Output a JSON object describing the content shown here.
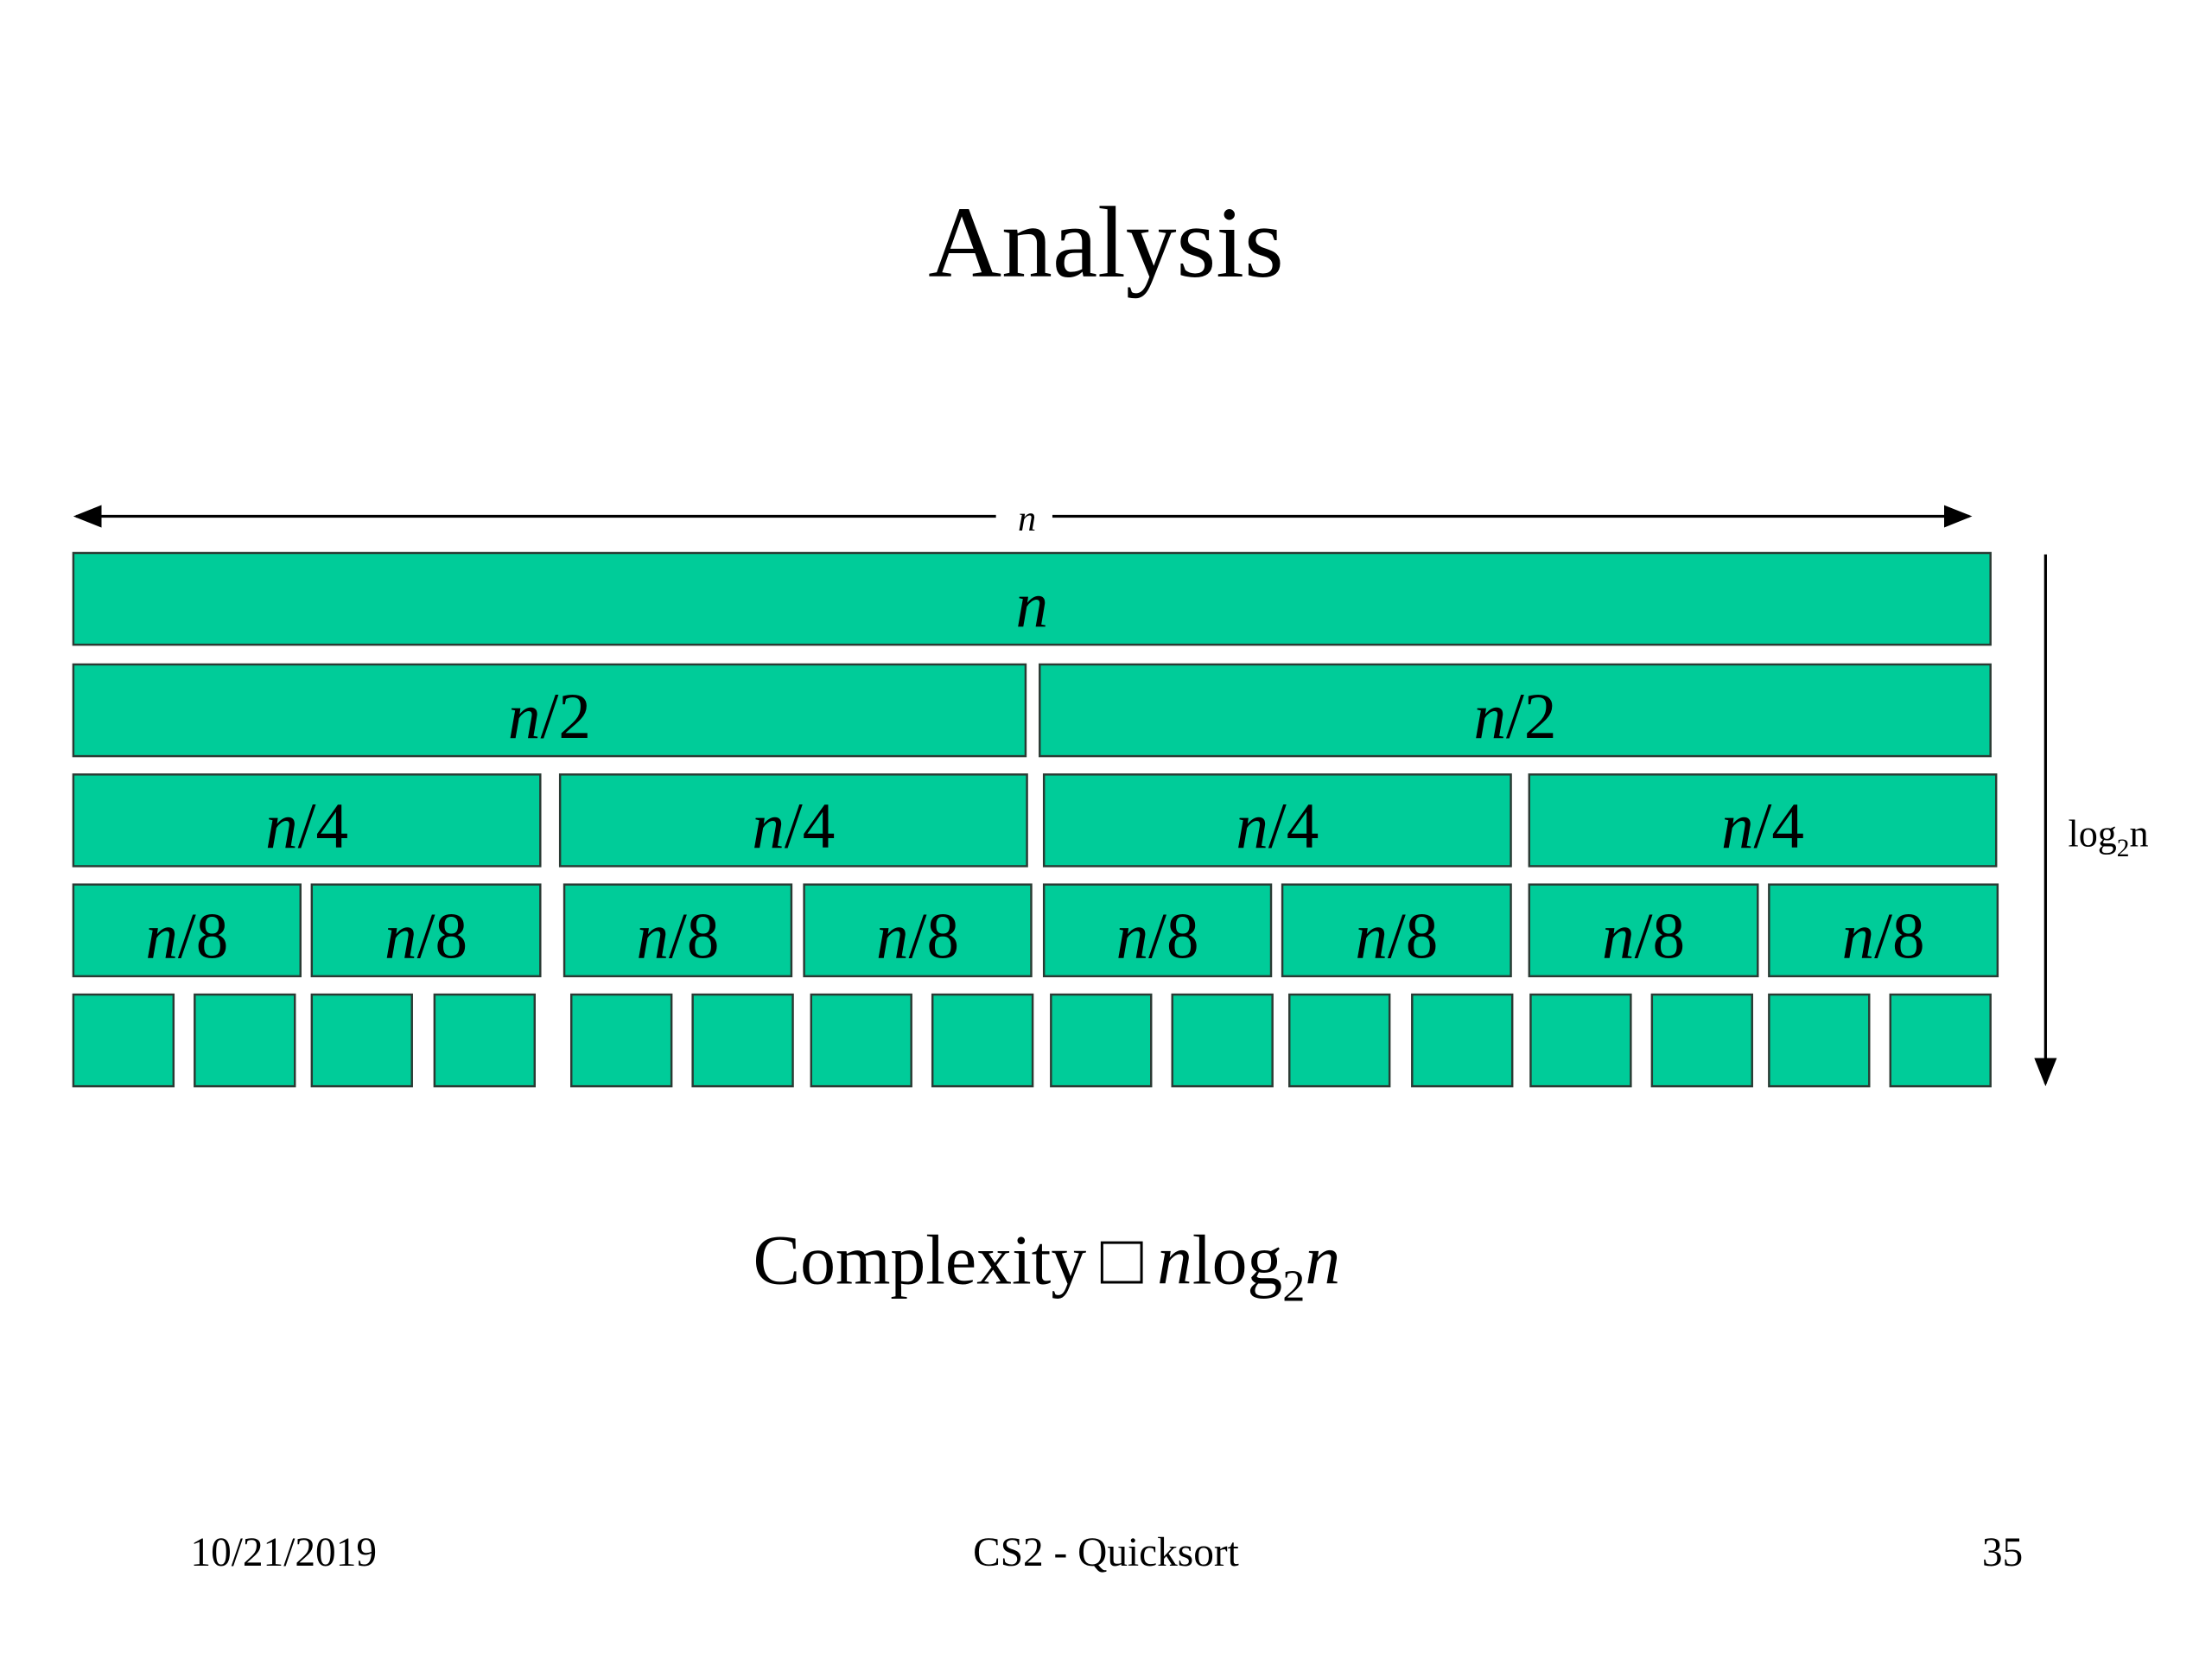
{
  "title": "Analysis",
  "width_label": "n",
  "depth_label": {
    "base": "log",
    "sub": "2",
    "arg": "n"
  },
  "levels": [
    [
      {
        "var": "n"
      }
    ],
    [
      {
        "var": "n",
        "rest": "/2"
      },
      {
        "var": "n",
        "rest": "/2"
      }
    ],
    [
      {
        "var": "n",
        "rest": "/4"
      },
      {
        "var": "n",
        "rest": "/4"
      },
      {
        "var": "n",
        "rest": "/4"
      },
      {
        "var": "n",
        "rest": "/4"
      }
    ],
    [
      {
        "var": "n",
        "rest": "/8"
      },
      {
        "var": "n",
        "rest": "/8"
      },
      {
        "var": "n",
        "rest": "/8"
      },
      {
        "var": "n",
        "rest": "/8"
      },
      {
        "var": "n",
        "rest": "/8"
      },
      {
        "var": "n",
        "rest": "/8"
      },
      {
        "var": "n",
        "rest": "/8"
      },
      {
        "var": "n",
        "rest": "/8"
      }
    ]
  ],
  "complexity": {
    "word": "Complexity",
    "symbol": "□",
    "var": "n",
    "log": "log",
    "sub": "2",
    "arg": "n"
  },
  "footer": {
    "date": "10/21/2019",
    "course": "CS2 - Quicksort",
    "page": "35"
  }
}
